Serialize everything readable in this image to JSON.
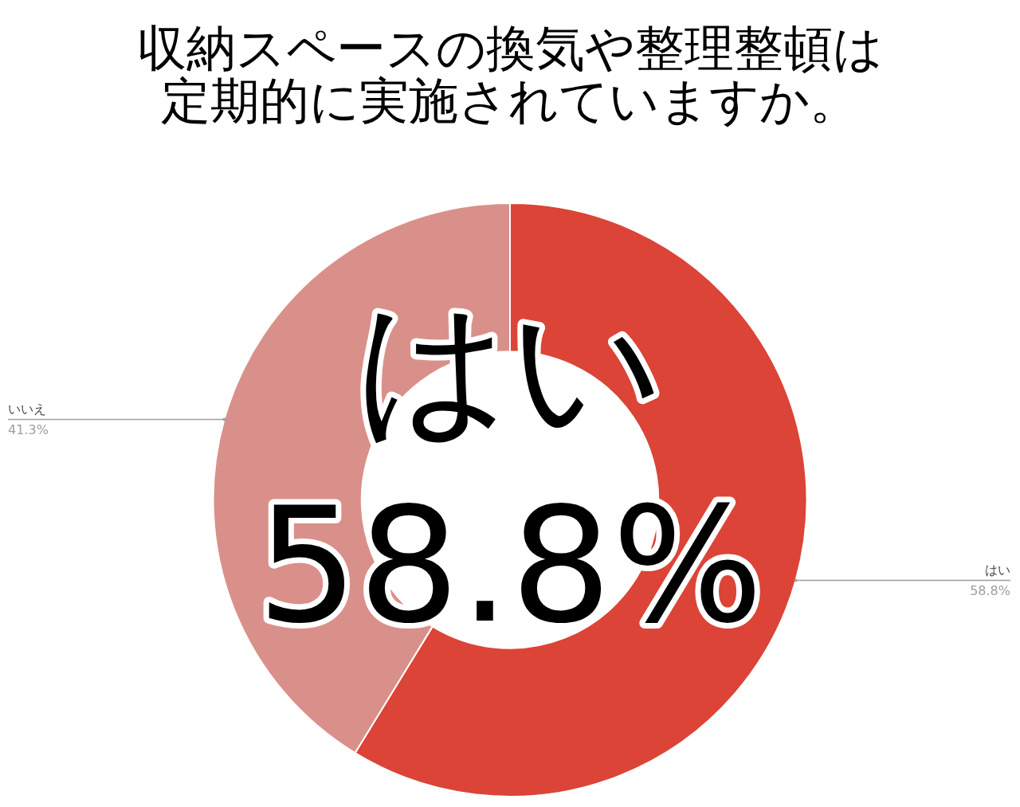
{
  "chart_data": {
    "type": "donut",
    "title": "収納スペースの換気や整理整頓は定期的に実施されていますか。",
    "categories": [
      "はい",
      "いいえ"
    ],
    "values": [
      58.8,
      41.3
    ],
    "colors": [
      "#db4437",
      "#da908a"
    ],
    "value_labels": [
      "58.8%",
      "41.3%"
    ],
    "annotations": [
      "はい",
      "58.8%"
    ],
    "legend": false
  }
}
